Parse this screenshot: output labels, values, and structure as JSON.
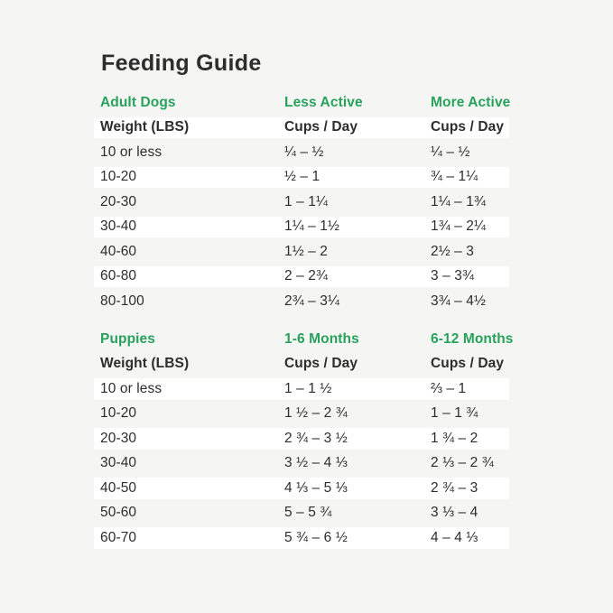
{
  "title": "Feeding Guide",
  "colors": {
    "accent_green": "#28a25b",
    "text": "#2d2d2d",
    "background": "#f5f5f4",
    "row_highlight": "#ffffff"
  },
  "chart_data": [
    {
      "type": "table",
      "group_headers": [
        "Adult Dogs",
        "Less Active",
        "More Active"
      ],
      "columns": [
        "Weight (LBS)",
        "Cups / Day",
        "Cups / Day"
      ],
      "rows": [
        [
          "10 or less",
          "¼ – ½",
          "¼ – ½"
        ],
        [
          "10-20",
          "½ – 1",
          "¾ – 1¼"
        ],
        [
          "20-30",
          "1 – 1¼",
          "1¼ – 1¾"
        ],
        [
          "30-40",
          "1¼ – 1½",
          "1¾ – 2¼"
        ],
        [
          "40-60",
          "1½ – 2",
          "2½ – 3"
        ],
        [
          "60-80",
          "2 – 2¾",
          "3 – 3¾"
        ],
        [
          "80-100",
          "2¾ – 3¼",
          "3¾ – 4½"
        ]
      ]
    },
    {
      "type": "table",
      "group_headers": [
        "Puppies",
        "1-6 Months",
        "6-12 Months"
      ],
      "columns": [
        "Weight (LBS)",
        "Cups / Day",
        "Cups / Day"
      ],
      "rows": [
        [
          "10 or less",
          "1 – 1 ½",
          "⅔ – 1"
        ],
        [
          "10-20",
          "1 ½ – 2 ¾",
          "1 – 1 ¾"
        ],
        [
          "20-30",
          "2 ¾ – 3 ½",
          "1 ¾ – 2"
        ],
        [
          "30-40",
          "3 ½ – 4 ⅓",
          "2 ⅓ – 2 ¾"
        ],
        [
          "40-50",
          "4 ⅓ – 5 ⅓",
          "2 ¾ – 3"
        ],
        [
          "50-60",
          "5 – 5 ¾",
          "3 ⅓ – 4"
        ],
        [
          "60-70",
          "5 ¾ – 6 ½",
          "4 – 4 ⅓"
        ]
      ]
    }
  ]
}
